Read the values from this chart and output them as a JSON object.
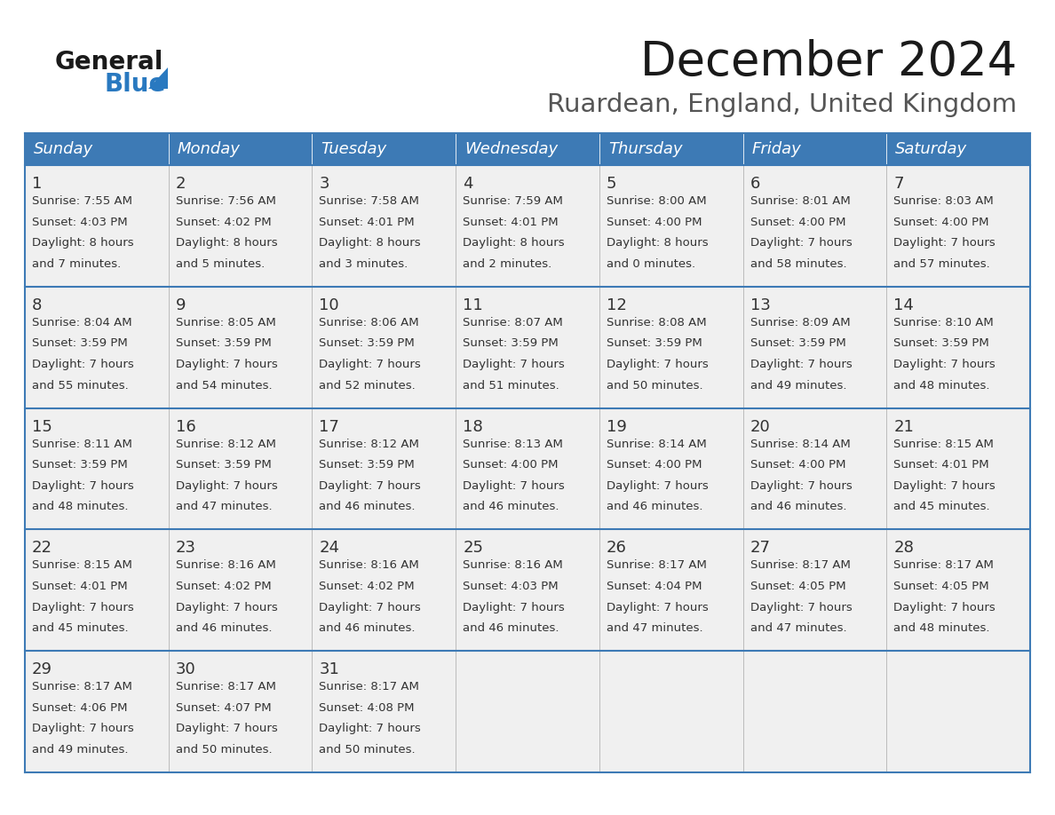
{
  "title": "December 2024",
  "subtitle": "Ruardean, England, United Kingdom",
  "header_color": "#3d7ab5",
  "header_text_color": "#ffffff",
  "cell_bg_color": "#f0f0f0",
  "day_headers": [
    "Sunday",
    "Monday",
    "Tuesday",
    "Wednesday",
    "Thursday",
    "Friday",
    "Saturday"
  ],
  "days": [
    {
      "day": 1,
      "col": 0,
      "row": 0,
      "sunrise": "7:55 AM",
      "sunset": "4:03 PM",
      "daylight_h": "8 hours",
      "daylight_m": "and 7 minutes."
    },
    {
      "day": 2,
      "col": 1,
      "row": 0,
      "sunrise": "7:56 AM",
      "sunset": "4:02 PM",
      "daylight_h": "8 hours",
      "daylight_m": "and 5 minutes."
    },
    {
      "day": 3,
      "col": 2,
      "row": 0,
      "sunrise": "7:58 AM",
      "sunset": "4:01 PM",
      "daylight_h": "8 hours",
      "daylight_m": "and 3 minutes."
    },
    {
      "day": 4,
      "col": 3,
      "row": 0,
      "sunrise": "7:59 AM",
      "sunset": "4:01 PM",
      "daylight_h": "8 hours",
      "daylight_m": "and 2 minutes."
    },
    {
      "day": 5,
      "col": 4,
      "row": 0,
      "sunrise": "8:00 AM",
      "sunset": "4:00 PM",
      "daylight_h": "8 hours",
      "daylight_m": "and 0 minutes."
    },
    {
      "day": 6,
      "col": 5,
      "row": 0,
      "sunrise": "8:01 AM",
      "sunset": "4:00 PM",
      "daylight_h": "7 hours",
      "daylight_m": "and 58 minutes."
    },
    {
      "day": 7,
      "col": 6,
      "row": 0,
      "sunrise": "8:03 AM",
      "sunset": "4:00 PM",
      "daylight_h": "7 hours",
      "daylight_m": "and 57 minutes."
    },
    {
      "day": 8,
      "col": 0,
      "row": 1,
      "sunrise": "8:04 AM",
      "sunset": "3:59 PM",
      "daylight_h": "7 hours",
      "daylight_m": "and 55 minutes."
    },
    {
      "day": 9,
      "col": 1,
      "row": 1,
      "sunrise": "8:05 AM",
      "sunset": "3:59 PM",
      "daylight_h": "7 hours",
      "daylight_m": "and 54 minutes."
    },
    {
      "day": 10,
      "col": 2,
      "row": 1,
      "sunrise": "8:06 AM",
      "sunset": "3:59 PM",
      "daylight_h": "7 hours",
      "daylight_m": "and 52 minutes."
    },
    {
      "day": 11,
      "col": 3,
      "row": 1,
      "sunrise": "8:07 AM",
      "sunset": "3:59 PM",
      "daylight_h": "7 hours",
      "daylight_m": "and 51 minutes."
    },
    {
      "day": 12,
      "col": 4,
      "row": 1,
      "sunrise": "8:08 AM",
      "sunset": "3:59 PM",
      "daylight_h": "7 hours",
      "daylight_m": "and 50 minutes."
    },
    {
      "day": 13,
      "col": 5,
      "row": 1,
      "sunrise": "8:09 AM",
      "sunset": "3:59 PM",
      "daylight_h": "7 hours",
      "daylight_m": "and 49 minutes."
    },
    {
      "day": 14,
      "col": 6,
      "row": 1,
      "sunrise": "8:10 AM",
      "sunset": "3:59 PM",
      "daylight_h": "7 hours",
      "daylight_m": "and 48 minutes."
    },
    {
      "day": 15,
      "col": 0,
      "row": 2,
      "sunrise": "8:11 AM",
      "sunset": "3:59 PM",
      "daylight_h": "7 hours",
      "daylight_m": "and 48 minutes."
    },
    {
      "day": 16,
      "col": 1,
      "row": 2,
      "sunrise": "8:12 AM",
      "sunset": "3:59 PM",
      "daylight_h": "7 hours",
      "daylight_m": "and 47 minutes."
    },
    {
      "day": 17,
      "col": 2,
      "row": 2,
      "sunrise": "8:12 AM",
      "sunset": "3:59 PM",
      "daylight_h": "7 hours",
      "daylight_m": "and 46 minutes."
    },
    {
      "day": 18,
      "col": 3,
      "row": 2,
      "sunrise": "8:13 AM",
      "sunset": "4:00 PM",
      "daylight_h": "7 hours",
      "daylight_m": "and 46 minutes."
    },
    {
      "day": 19,
      "col": 4,
      "row": 2,
      "sunrise": "8:14 AM",
      "sunset": "4:00 PM",
      "daylight_h": "7 hours",
      "daylight_m": "and 46 minutes."
    },
    {
      "day": 20,
      "col": 5,
      "row": 2,
      "sunrise": "8:14 AM",
      "sunset": "4:00 PM",
      "daylight_h": "7 hours",
      "daylight_m": "and 46 minutes."
    },
    {
      "day": 21,
      "col": 6,
      "row": 2,
      "sunrise": "8:15 AM",
      "sunset": "4:01 PM",
      "daylight_h": "7 hours",
      "daylight_m": "and 45 minutes."
    },
    {
      "day": 22,
      "col": 0,
      "row": 3,
      "sunrise": "8:15 AM",
      "sunset": "4:01 PM",
      "daylight_h": "7 hours",
      "daylight_m": "and 45 minutes."
    },
    {
      "day": 23,
      "col": 1,
      "row": 3,
      "sunrise": "8:16 AM",
      "sunset": "4:02 PM",
      "daylight_h": "7 hours",
      "daylight_m": "and 46 minutes."
    },
    {
      "day": 24,
      "col": 2,
      "row": 3,
      "sunrise": "8:16 AM",
      "sunset": "4:02 PM",
      "daylight_h": "7 hours",
      "daylight_m": "and 46 minutes."
    },
    {
      "day": 25,
      "col": 3,
      "row": 3,
      "sunrise": "8:16 AM",
      "sunset": "4:03 PM",
      "daylight_h": "7 hours",
      "daylight_m": "and 46 minutes."
    },
    {
      "day": 26,
      "col": 4,
      "row": 3,
      "sunrise": "8:17 AM",
      "sunset": "4:04 PM",
      "daylight_h": "7 hours",
      "daylight_m": "and 47 minutes."
    },
    {
      "day": 27,
      "col": 5,
      "row": 3,
      "sunrise": "8:17 AM",
      "sunset": "4:05 PM",
      "daylight_h": "7 hours",
      "daylight_m": "and 47 minutes."
    },
    {
      "day": 28,
      "col": 6,
      "row": 3,
      "sunrise": "8:17 AM",
      "sunset": "4:05 PM",
      "daylight_h": "7 hours",
      "daylight_m": "and 48 minutes."
    },
    {
      "day": 29,
      "col": 0,
      "row": 4,
      "sunrise": "8:17 AM",
      "sunset": "4:06 PM",
      "daylight_h": "7 hours",
      "daylight_m": "and 49 minutes."
    },
    {
      "day": 30,
      "col": 1,
      "row": 4,
      "sunrise": "8:17 AM",
      "sunset": "4:07 PM",
      "daylight_h": "7 hours",
      "daylight_m": "and 50 minutes."
    },
    {
      "day": 31,
      "col": 2,
      "row": 4,
      "sunrise": "8:17 AM",
      "sunset": "4:08 PM",
      "daylight_h": "7 hours",
      "daylight_m": "and 50 minutes."
    }
  ],
  "title_fontsize": 38,
  "subtitle_fontsize": 21,
  "header_fontsize": 13,
  "day_num_fontsize": 13,
  "cell_fontsize": 9.5,
  "border_color": "#3d7ab5",
  "line_color": "#3d7ab5",
  "text_color": "#333333",
  "background_color": "#ffffff",
  "logo_general_color": "#1a1a1a",
  "logo_blue_color": "#2979c0",
  "logo_triangle_color": "#2979c0"
}
